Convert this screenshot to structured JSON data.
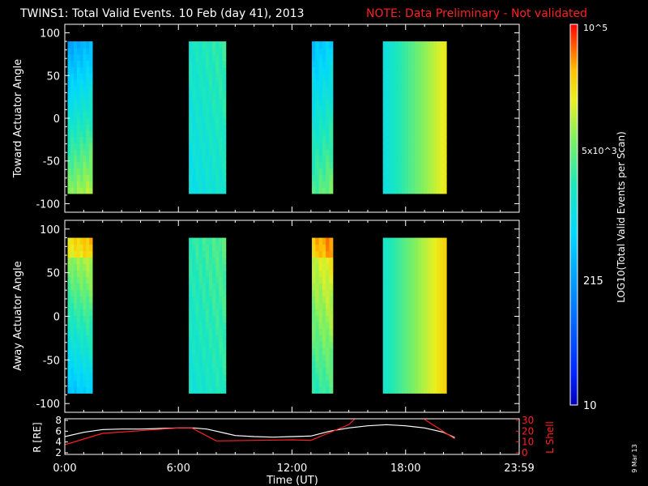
{
  "header": {
    "title": "TWINS1: Total Valid Events. 10 Feb (day  41), 2013",
    "note": "NOTE: Data Preliminary - Not validated",
    "note_color": "#ff2020"
  },
  "footer": {
    "date_stamp": "9 Mar 13"
  },
  "chart_data": [
    {
      "type": "heatmap",
      "panel": "top",
      "ylabel": "Toward Actuator Angle",
      "xlim_hours": [
        0,
        24
      ],
      "ylim": [
        -110,
        110
      ],
      "yticks": [
        100,
        50,
        0,
        -50,
        -100
      ],
      "angle_range": [
        -88,
        90
      ],
      "segments": [
        {
          "start_hour": 0.15,
          "end_hour": 1.45,
          "low_angle_value": 0.73,
          "high_angle_value": 0.36,
          "spike": 0
        },
        {
          "start_hour": 6.55,
          "end_hour": 8.5,
          "low_angle_value": 0.52,
          "high_angle_value": 0.58,
          "spike": 0
        },
        {
          "start_hour": 13.05,
          "end_hour": 14.15,
          "low_angle_value": 0.66,
          "high_angle_value": 0.42,
          "spike": 0
        },
        {
          "start_hour": 16.8,
          "end_hour": 20.15,
          "low_angle_value": 0.7,
          "high_angle_value": 0.7,
          "spike": 0
        }
      ],
      "colorscale": {
        "label": "LOG10(Total Valid Events per Scan)",
        "tick_labels": [
          "10",
          "215",
          "5x10^3",
          "10^5"
        ]
      }
    },
    {
      "type": "heatmap",
      "panel": "middle",
      "ylabel": "Away Actuator Angle",
      "xlim_hours": [
        0,
        24
      ],
      "ylim": [
        -110,
        110
      ],
      "yticks": [
        100,
        50,
        0,
        -50,
        -100
      ],
      "angle_range": [
        -88,
        90
      ],
      "segments": [
        {
          "start_hour": 0.15,
          "end_hour": 1.45,
          "low_angle_value": 0.42,
          "high_angle_value": 0.78,
          "spike": 1
        },
        {
          "start_hour": 6.55,
          "end_hour": 8.5,
          "low_angle_value": 0.55,
          "high_angle_value": 0.62,
          "spike": 0
        },
        {
          "start_hour": 13.05,
          "end_hour": 14.15,
          "low_angle_value": 0.6,
          "high_angle_value": 0.82,
          "spike": 1
        },
        {
          "start_hour": 16.8,
          "end_hour": 20.15,
          "low_angle_value": 0.74,
          "high_angle_value": 0.74,
          "spike": 0
        }
      ]
    },
    {
      "type": "line",
      "panel": "bottom",
      "xlabel": "Time (UT)",
      "xlim_hours": [
        0,
        24
      ],
      "x_tick_labels": [
        "0:00",
        "6:00",
        "12:00",
        "18:00",
        "23:59"
      ],
      "left_axis": {
        "label": "R [RE]",
        "ylim": [
          2,
          8
        ],
        "ticks": [
          2,
          4,
          6,
          8
        ]
      },
      "right_axis": {
        "label": "L Shell",
        "ylim": [
          0,
          30
        ],
        "ticks": [
          0,
          10,
          20,
          30
        ],
        "color": "#ff2020"
      },
      "series": [
        {
          "color": "#ffffff",
          "axis": "left",
          "x": [
            0.0,
            1.0,
            2.0,
            3.0,
            4.0,
            5.0,
            6.0,
            6.8,
            7.5,
            8.0,
            8.5,
            9.0,
            10.0,
            11.0,
            12.0,
            13.0,
            14.0,
            15.0,
            16.0,
            17.0,
            18.0,
            19.0,
            20.0,
            20.6
          ],
          "y": [
            5.0,
            5.8,
            6.3,
            6.4,
            6.4,
            6.5,
            6.6,
            6.6,
            6.4,
            6.0,
            5.6,
            5.2,
            5.0,
            4.9,
            5.0,
            5.1,
            6.0,
            6.6,
            7.0,
            7.2,
            7.0,
            6.6,
            5.8,
            4.8
          ]
        },
        {
          "color": "#ff2020",
          "axis": "right",
          "x": [
            0.0,
            2.0,
            4.0,
            6.0,
            6.7,
            8.0,
            10.0,
            12.0,
            13.0,
            15.0,
            15.3
          ],
          "y": [
            7.5,
            18.0,
            20.5,
            23.0,
            23.0,
            11.0,
            11.5,
            12.0,
            11.5,
            26.0,
            31.0
          ]
        },
        {
          "color": "#ff2020",
          "axis": "right",
          "x": [
            19.0,
            20.6
          ],
          "y": [
            31.0,
            13.0
          ]
        }
      ]
    }
  ]
}
